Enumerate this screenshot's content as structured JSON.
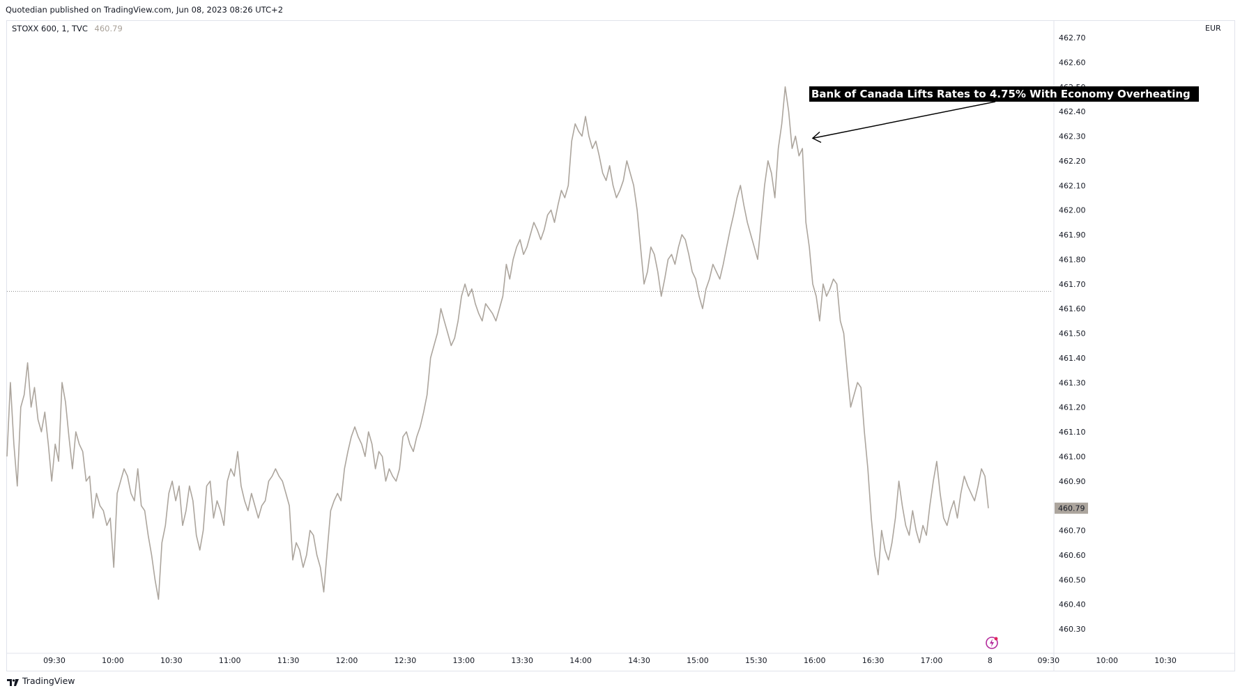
{
  "header": {
    "publisher_text": "Quotedian published on TradingView.com, Jun 08, 2023 08:26 UTC+2"
  },
  "legend": {
    "symbol": "STOXX 600, 1, TVC",
    "last_value": "460.79"
  },
  "currency": "EUR",
  "footer": {
    "brand": "TradingView",
    "logo": "tradingview-logo"
  },
  "icons": {
    "event": "lightning-bolt-icon"
  },
  "colors": {
    "line": "#aca59d",
    "annotation_bg": "#000000",
    "annotation_text": "#ffffff",
    "price_tag": "#aca59d",
    "dotted_line": "#878787"
  },
  "chart_data": {
    "type": "line",
    "title": "",
    "xlabel": "",
    "ylabel": "",
    "ylim": [
      460.24,
      462.73
    ],
    "y_ticks": [
      "462.70",
      "462.60",
      "462.50",
      "462.40",
      "462.30",
      "462.20",
      "462.10",
      "462.00",
      "461.90",
      "461.80",
      "461.70",
      "461.60",
      "461.50",
      "461.40",
      "461.30",
      "461.20",
      "461.10",
      "461.00",
      "460.90",
      "460.80",
      "460.70",
      "460.60",
      "460.50",
      "460.40",
      "460.30"
    ],
    "x_ticks": [
      "09:30",
      "10:00",
      "10:30",
      "11:00",
      "11:30",
      "12:00",
      "12:30",
      "13:00",
      "13:30",
      "14:00",
      "14:30",
      "15:00",
      "15:30",
      "16:00",
      "16:30",
      "17:00",
      "8",
      "09:30",
      "10:00",
      "10:30"
    ],
    "previous_close": 461.67,
    "last_price_label": "460.79",
    "annotation": {
      "text": "Bank of Canada Lifts Rates to 4.75% With Economy Overheating",
      "time": "15:58",
      "value": 462.3
    },
    "grid": false,
    "series": [
      {
        "name": "",
        "values": [
          461.0,
          461.3,
          461.05,
          460.88,
          461.2,
          461.25,
          461.38,
          461.2,
          461.28,
          461.15,
          461.1,
          461.18,
          461.05,
          460.9,
          461.05,
          460.98,
          461.3,
          461.22,
          461.08,
          460.95,
          461.1,
          461.05,
          461.02,
          460.9,
          460.92,
          460.75,
          460.85,
          460.8,
          460.78,
          460.72,
          460.75,
          460.55,
          460.85,
          460.9,
          460.95,
          460.92,
          460.85,
          460.82,
          460.95,
          460.8,
          460.78,
          460.68,
          460.6,
          460.5,
          460.42,
          460.65,
          460.72,
          460.85,
          460.9,
          460.82,
          460.88,
          460.72,
          460.78,
          460.88,
          460.82,
          460.68,
          460.62,
          460.7,
          460.88,
          460.9,
          460.75,
          460.82,
          460.78,
          460.72,
          460.9,
          460.95,
          460.92,
          461.02,
          460.88,
          460.82,
          460.78,
          460.85,
          460.8,
          460.75,
          460.8,
          460.82,
          460.9,
          460.92,
          460.95,
          460.92,
          460.9,
          460.85,
          460.8,
          460.58,
          460.65,
          460.62,
          460.55,
          460.6,
          460.7,
          460.68,
          460.6,
          460.55,
          460.45,
          460.62,
          460.78,
          460.82,
          460.85,
          460.82,
          460.95,
          461.02,
          461.08,
          461.12,
          461.08,
          461.05,
          461.0,
          461.1,
          461.05,
          460.95,
          461.02,
          461.0,
          460.9,
          460.95,
          460.92,
          460.9,
          460.95,
          461.08,
          461.1,
          461.05,
          461.02,
          461.08,
          461.12,
          461.18,
          461.25,
          461.4,
          461.45,
          461.5,
          461.6,
          461.55,
          461.5,
          461.45,
          461.48,
          461.55,
          461.65,
          461.7,
          461.65,
          461.68,
          461.62,
          461.58,
          461.55,
          461.62,
          461.6,
          461.58,
          461.55,
          461.6,
          461.65,
          461.78,
          461.72,
          461.8,
          461.85,
          461.88,
          461.82,
          461.85,
          461.9,
          461.95,
          461.92,
          461.88,
          461.92,
          461.98,
          462.0,
          461.95,
          462.02,
          462.08,
          462.05,
          462.1,
          462.28,
          462.35,
          462.32,
          462.3,
          462.38,
          462.3,
          462.25,
          462.28,
          462.22,
          462.15,
          462.12,
          462.18,
          462.1,
          462.05,
          462.08,
          462.12,
          462.2,
          462.15,
          462.1,
          462.0,
          461.85,
          461.7,
          461.75,
          461.85,
          461.82,
          461.75,
          461.65,
          461.72,
          461.8,
          461.82,
          461.78,
          461.85,
          461.9,
          461.88,
          461.82,
          461.75,
          461.72,
          461.65,
          461.6,
          461.68,
          461.72,
          461.78,
          461.75,
          461.72,
          461.78,
          461.85,
          461.92,
          461.98,
          462.05,
          462.1,
          462.02,
          461.95,
          461.9,
          461.85,
          461.8,
          461.95,
          462.1,
          462.2,
          462.15,
          462.05,
          462.25,
          462.35,
          462.5,
          462.4,
          462.25,
          462.3,
          462.22,
          462.25,
          461.95,
          461.85,
          461.7,
          461.65,
          461.55,
          461.7,
          461.65,
          461.68,
          461.72,
          461.7,
          461.55,
          461.5,
          461.35,
          461.2,
          461.25,
          461.3,
          461.28,
          461.1,
          460.95,
          460.75,
          460.6,
          460.52,
          460.7,
          460.62,
          460.58,
          460.65,
          460.75,
          460.9,
          460.8,
          460.72,
          460.68,
          460.78,
          460.7,
          460.65,
          460.72,
          460.68,
          460.8,
          460.9,
          460.98,
          460.85,
          460.75,
          460.72,
          460.78,
          460.82,
          460.75,
          460.85,
          460.92,
          460.88,
          460.85,
          460.82,
          460.88,
          460.95,
          460.92,
          460.79
        ]
      }
    ]
  }
}
